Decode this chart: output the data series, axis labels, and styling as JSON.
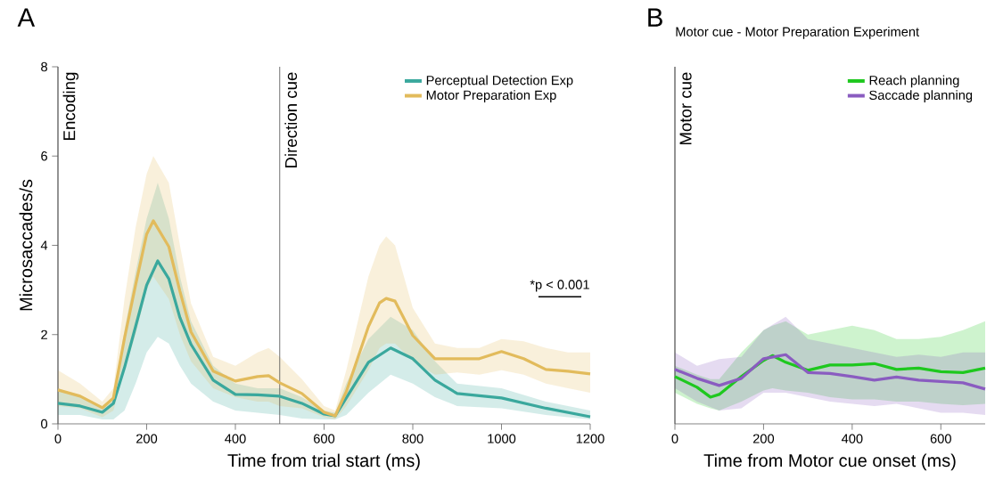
{
  "chart_data": [
    {
      "type": "line",
      "title": "A",
      "xlabel": "Time from trial start (ms)",
      "ylabel": "Microsaccades/s",
      "xlim": [
        0,
        1200
      ],
      "ylim": [
        0,
        8
      ],
      "xticks": [
        0,
        200,
        400,
        600,
        800,
        1000,
        1200
      ],
      "yticks": [
        0,
        2,
        4,
        6,
        8
      ],
      "legend": "top right",
      "grid": false,
      "ref_lines": [
        {
          "axis": "x",
          "value": 0,
          "label": "Encoding"
        },
        {
          "axis": "x",
          "value": 500,
          "label": "Direction cue"
        }
      ],
      "annotations": [
        "*p < 0.001"
      ],
      "series": [
        {
          "name": "Perceptual Detection Exp",
          "color": "#3aa89d",
          "x": [
            0,
            50,
            100,
            125,
            150,
            175,
            200,
            225,
            250,
            275,
            300,
            350,
            400,
            450,
            500,
            550,
            600,
            625,
            650,
            700,
            750,
            800,
            850,
            900,
            1000,
            1100,
            1200
          ],
          "values": [
            0.46,
            0.4,
            0.26,
            0.46,
            1.26,
            2.18,
            3.11,
            3.65,
            3.25,
            2.38,
            1.78,
            0.98,
            0.66,
            0.65,
            0.62,
            0.46,
            0.22,
            0.18,
            0.58,
            1.38,
            1.7,
            1.46,
            0.98,
            0.68,
            0.58,
            0.35,
            0.16
          ],
          "upper": [
            0.8,
            0.6,
            0.4,
            0.6,
            2.1,
            3.4,
            4.6,
            5.4,
            4.6,
            3.3,
            2.3,
            1.3,
            0.9,
            0.8,
            0.8,
            0.6,
            0.3,
            0.25,
            0.9,
            1.9,
            2.4,
            2.1,
            1.4,
            0.9,
            0.8,
            0.5,
            0.3
          ],
          "lower": [
            0.2,
            0.2,
            0.1,
            0.1,
            0.3,
            0.9,
            1.6,
            1.95,
            1.8,
            1.3,
            0.9,
            0.5,
            0.3,
            0.25,
            0.2,
            0.12,
            0.1,
            0.1,
            0.2,
            0.7,
            1.1,
            0.9,
            0.6,
            0.4,
            0.35,
            0.2,
            0.1
          ]
        },
        {
          "name": "Motor Preparation Exp",
          "color": "#e2bb5c",
          "x": [
            0,
            50,
            100,
            125,
            150,
            175,
            200,
            215,
            250,
            275,
            300,
            350,
            400,
            450,
            475,
            500,
            550,
            600,
            625,
            650,
            700,
            725,
            740,
            760,
            800,
            850,
            900,
            950,
            1000,
            1050,
            1100,
            1150,
            1200
          ],
          "values": [
            0.76,
            0.62,
            0.36,
            0.58,
            1.92,
            3.11,
            4.25,
            4.55,
            3.97,
            2.97,
            2.06,
            1.18,
            0.96,
            1.06,
            1.08,
            0.92,
            0.68,
            0.26,
            0.18,
            0.72,
            2.18,
            2.71,
            2.81,
            2.75,
            1.98,
            1.46,
            1.46,
            1.46,
            1.62,
            1.46,
            1.22,
            1.18,
            1.12
          ],
          "upper": [
            1.2,
            0.9,
            0.5,
            0.8,
            2.8,
            4.4,
            5.6,
            6.0,
            5.4,
            4.0,
            2.7,
            1.5,
            1.3,
            1.6,
            1.7,
            1.5,
            1.0,
            0.4,
            0.3,
            1.2,
            3.3,
            4.0,
            4.2,
            4.0,
            2.6,
            1.8,
            1.7,
            1.7,
            1.9,
            1.85,
            1.7,
            1.6,
            1.6
          ],
          "lower": [
            0.4,
            0.35,
            0.15,
            0.3,
            1.2,
            2.0,
            3.0,
            3.3,
            2.8,
            2.0,
            1.4,
            0.8,
            0.6,
            0.5,
            0.5,
            0.4,
            0.35,
            0.15,
            0.1,
            0.4,
            1.2,
            1.7,
            1.8,
            1.8,
            1.4,
            1.1,
            1.15,
            1.1,
            1.2,
            1.1,
            0.9,
            0.8,
            0.7
          ]
        }
      ]
    },
    {
      "type": "line",
      "title": "B",
      "subtitle": "Motor cue - Motor Preparation Experiment",
      "xlabel": "Time from Motor cue onset (ms)",
      "xlim": [
        0,
        700
      ],
      "ylim": [
        0,
        8
      ],
      "xticks": [
        0,
        200,
        400,
        600
      ],
      "tick_labels": "x",
      "legend": "top right",
      "grid": false,
      "ref_lines": [
        {
          "axis": "x",
          "value": 0,
          "label": "Motor cue"
        }
      ],
      "series": [
        {
          "name": "Reach planning",
          "color": "#1ec81e",
          "x": [
            0,
            50,
            80,
            100,
            150,
            200,
            220,
            250,
            300,
            350,
            400,
            450,
            500,
            550,
            600,
            650,
            700
          ],
          "values": [
            1.06,
            0.82,
            0.6,
            0.66,
            1.06,
            1.42,
            1.53,
            1.38,
            1.2,
            1.32,
            1.32,
            1.35,
            1.22,
            1.25,
            1.17,
            1.15,
            1.25
          ],
          "upper": [
            1.3,
            1.1,
            1.0,
            1.0,
            1.6,
            2.1,
            2.2,
            2.3,
            2.0,
            2.1,
            2.2,
            2.1,
            1.9,
            1.9,
            1.95,
            2.1,
            2.3
          ],
          "lower": [
            0.7,
            0.45,
            0.35,
            0.3,
            0.5,
            0.75,
            0.8,
            0.75,
            0.7,
            0.6,
            0.55,
            0.55,
            0.5,
            0.5,
            0.45,
            0.42,
            0.45
          ]
        },
        {
          "name": "Saccade planning",
          "color": "#8a5cc0",
          "x": [
            0,
            50,
            100,
            150,
            200,
            250,
            300,
            350,
            400,
            450,
            500,
            550,
            600,
            650,
            700
          ],
          "values": [
            1.22,
            1.02,
            0.86,
            1.02,
            1.46,
            1.55,
            1.15,
            1.13,
            1.06,
            0.98,
            1.05,
            0.98,
            0.95,
            0.92,
            0.78
          ],
          "upper": [
            1.6,
            1.3,
            1.45,
            1.5,
            2.1,
            2.4,
            1.9,
            1.8,
            1.7,
            1.6,
            1.5,
            1.55,
            1.5,
            1.6,
            1.6
          ],
          "lower": [
            0.8,
            0.5,
            0.3,
            0.35,
            0.7,
            0.7,
            0.6,
            0.5,
            0.45,
            0.4,
            0.45,
            0.35,
            0.25,
            0.25,
            0.2
          ]
        }
      ]
    }
  ]
}
